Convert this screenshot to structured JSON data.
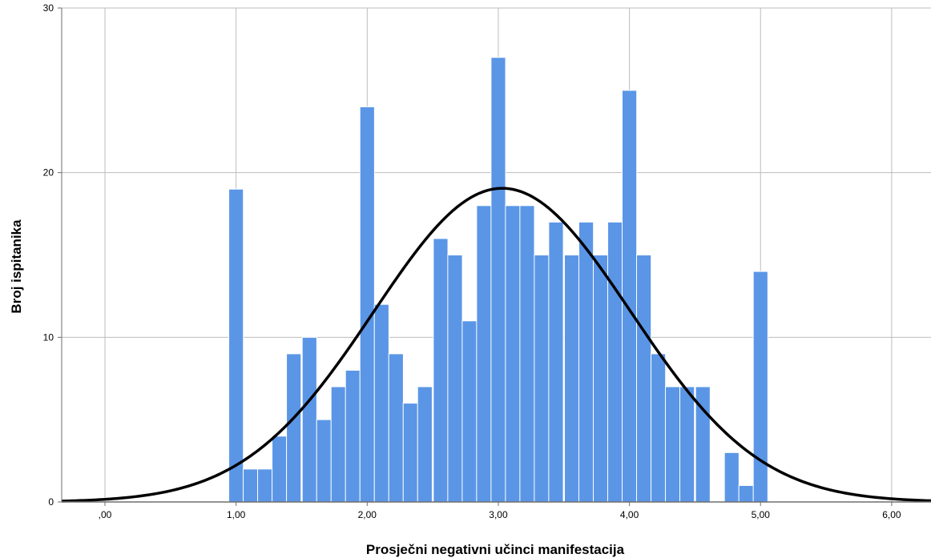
{
  "chart_data": {
    "type": "bar",
    "title": "",
    "xlabel": "Prosječni negativni učinci manifestacija",
    "ylabel": "Broj ispitanika",
    "xlim": [
      -0.33,
      6.3
    ],
    "ylim": [
      0,
      30
    ],
    "bin_width": 0.1111,
    "x_ticks": [
      {
        "value": 0,
        "label": ",00"
      },
      {
        "value": 1,
        "label": "1,00"
      },
      {
        "value": 2,
        "label": "2,00"
      },
      {
        "value": 3,
        "label": "3,00"
      },
      {
        "value": 4,
        "label": "4,00"
      },
      {
        "value": 5,
        "label": "5,00"
      },
      {
        "value": 6,
        "label": "6,00"
      }
    ],
    "y_ticks": [
      {
        "value": 0,
        "label": "0"
      },
      {
        "value": 10,
        "label": "10"
      },
      {
        "value": 20,
        "label": "20"
      },
      {
        "value": 30,
        "label": "30"
      }
    ],
    "bins": [
      {
        "x": 1.0,
        "y": 19
      },
      {
        "x": 1.11,
        "y": 2
      },
      {
        "x": 1.22,
        "y": 2
      },
      {
        "x": 1.33,
        "y": 4
      },
      {
        "x": 1.44,
        "y": 9
      },
      {
        "x": 1.56,
        "y": 10
      },
      {
        "x": 1.67,
        "y": 5
      },
      {
        "x": 1.78,
        "y": 7
      },
      {
        "x": 1.89,
        "y": 8
      },
      {
        "x": 2.0,
        "y": 24
      },
      {
        "x": 2.11,
        "y": 12
      },
      {
        "x": 2.22,
        "y": 9
      },
      {
        "x": 2.33,
        "y": 6
      },
      {
        "x": 2.44,
        "y": 7
      },
      {
        "x": 2.56,
        "y": 16
      },
      {
        "x": 2.67,
        "y": 15
      },
      {
        "x": 2.78,
        "y": 11
      },
      {
        "x": 2.89,
        "y": 18
      },
      {
        "x": 3.0,
        "y": 27
      },
      {
        "x": 3.11,
        "y": 18
      },
      {
        "x": 3.22,
        "y": 18
      },
      {
        "x": 3.33,
        "y": 15
      },
      {
        "x": 3.44,
        "y": 17
      },
      {
        "x": 3.56,
        "y": 15
      },
      {
        "x": 3.67,
        "y": 17
      },
      {
        "x": 3.78,
        "y": 15
      },
      {
        "x": 3.89,
        "y": 17
      },
      {
        "x": 4.0,
        "y": 25
      },
      {
        "x": 4.11,
        "y": 15
      },
      {
        "x": 4.22,
        "y": 9
      },
      {
        "x": 4.33,
        "y": 7
      },
      {
        "x": 4.44,
        "y": 7
      },
      {
        "x": 4.56,
        "y": 7
      },
      {
        "x": 4.78,
        "y": 3
      },
      {
        "x": 4.89,
        "y": 1
      },
      {
        "x": 5.0,
        "y": 14
      }
    ],
    "normal_curve": {
      "mean": 3.03,
      "sd": 0.98,
      "peak": 19.05
    },
    "grid": true,
    "bar_color": "#5b96e6",
    "bar_edge_color": "#ffffff",
    "grid_color": "#bdbdbd",
    "curve_color": "#000000",
    "axis_color": "#6e6e6e"
  }
}
